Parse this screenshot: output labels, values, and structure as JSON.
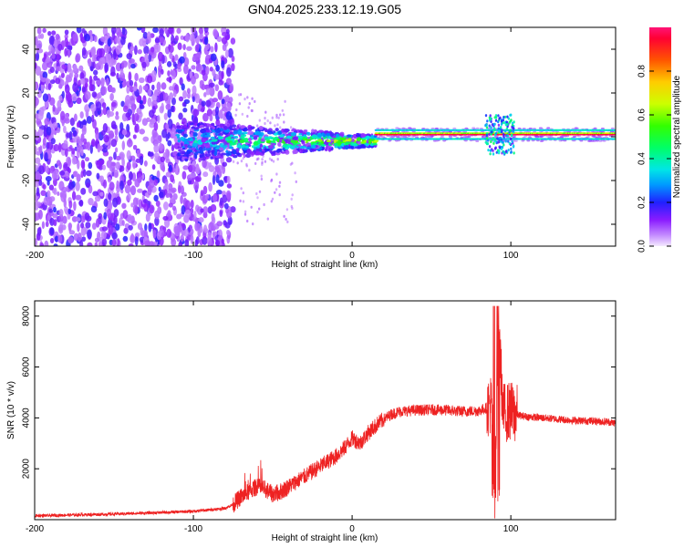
{
  "title": "GN04.2025.233.12.19.G05",
  "colors": {
    "snr_line": "#ee2222",
    "background": "#ffffff",
    "frame": "#000000"
  },
  "chart_data": [
    {
      "type": "heatmap",
      "xlabel": "Height of straight line (km)",
      "ylabel": "Frequency (Hz)",
      "xlim": [
        -200,
        166
      ],
      "ylim": [
        -50,
        50
      ],
      "xticks": [
        -200,
        -100,
        0,
        100
      ],
      "yticks": [
        -40,
        -20,
        0,
        20,
        40
      ],
      "grid": false,
      "colormap": "rainbow (violet to red)",
      "colorbar": {
        "label": "Normalized spectral amplitude",
        "range": [
          0,
          1
        ],
        "ticks": [
          0.0,
          0.2,
          0.4,
          0.6,
          0.8
        ]
      }
    },
    {
      "type": "line",
      "xlabel": "Height of straight line (km)",
      "ylabel": "SNR (10 * v/v)",
      "xlim": [
        -200,
        166
      ],
      "ylim": [
        0,
        8600
      ],
      "xticks": [
        -200,
        -100,
        0,
        100
      ],
      "yticks": [
        2000,
        4000,
        6000,
        8000
      ],
      "grid": false,
      "series": [
        {
          "points": [
            [
              -200,
              150
            ],
            [
              -180,
              180
            ],
            [
              -150,
              220
            ],
            [
              -120,
              280
            ],
            [
              -100,
              330
            ],
            [
              -90,
              380
            ],
            [
              -80,
              450
            ],
            [
              -75,
              600
            ],
            [
              -70,
              900
            ],
            [
              -65,
              1100
            ],
            [
              -60,
              1300
            ],
            [
              -55,
              1200
            ],
            [
              -50,
              1000
            ],
            [
              -45,
              1100
            ],
            [
              -40,
              1300
            ],
            [
              -35,
              1500
            ],
            [
              -30,
              1700
            ],
            [
              -25,
              1900
            ],
            [
              -20,
              2100
            ],
            [
              -15,
              2300
            ],
            [
              -10,
              2500
            ],
            [
              -5,
              2800
            ],
            [
              0,
              3200
            ],
            [
              5,
              3000
            ],
            [
              10,
              3400
            ],
            [
              15,
              3700
            ],
            [
              20,
              3950
            ],
            [
              25,
              4150
            ],
            [
              30,
              4250
            ],
            [
              40,
              4300
            ],
            [
              50,
              4320
            ],
            [
              60,
              4300
            ],
            [
              70,
              4250
            ],
            [
              80,
              4280
            ],
            [
              85,
              4400
            ],
            [
              88,
              4600
            ],
            [
              90,
              900
            ],
            [
              92,
              8300
            ],
            [
              95,
              4200
            ],
            [
              100,
              4250
            ],
            [
              105,
              4100
            ],
            [
              110,
              4050
            ],
            [
              120,
              4000
            ],
            [
              130,
              3950
            ],
            [
              140,
              3900
            ],
            [
              150,
              3880
            ],
            [
              160,
              3850
            ],
            [
              166,
              3800
            ]
          ]
        }
      ]
    }
  ]
}
